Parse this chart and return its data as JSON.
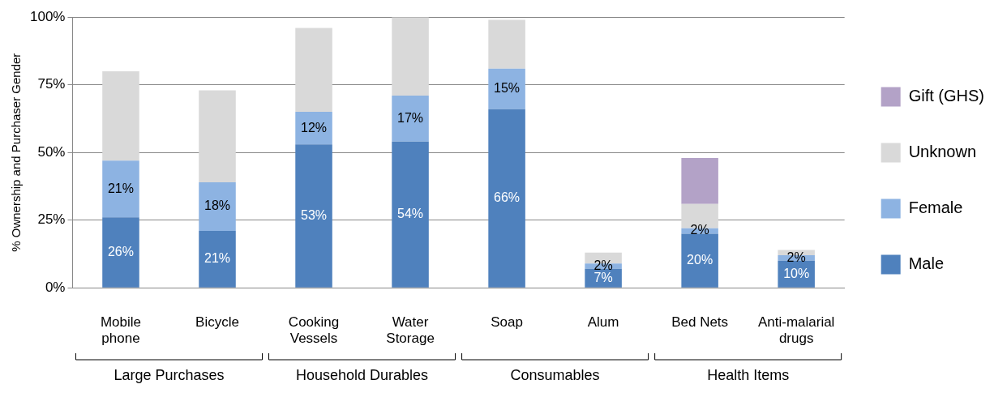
{
  "chart_data": {
    "type": "bar",
    "stacked": true,
    "ylabel": "% Ownership and Purchaser Gender",
    "categories": [
      "Mobile phone",
      "Bicycle",
      "Cooking Vessels",
      "Water Storage",
      "Soap",
      "Alum",
      "Bed Nets",
      "Anti-malarial drugs"
    ],
    "series": [
      {
        "name": "Male",
        "color": "#4f81bd",
        "values": [
          26,
          21,
          53,
          54,
          66,
          7,
          20,
          10
        ],
        "value_labels": [
          "26%",
          "21%",
          "53%",
          "54%",
          "66%",
          "7%",
          "20%",
          "10%"
        ]
      },
      {
        "name": "Female",
        "color": "#8db3e2",
        "values": [
          21,
          18,
          12,
          17,
          15,
          2,
          2,
          2
        ],
        "value_labels": [
          "21%",
          "18%",
          "12%",
          "17%",
          "15%",
          "2%",
          "2%",
          "2%"
        ]
      },
      {
        "name": "Unknown",
        "color": "#d9d9d9",
        "values": [
          33,
          34,
          31,
          29,
          18,
          4,
          9,
          2
        ]
      },
      {
        "name": "Gift (GHS)",
        "color": "#b3a2c7",
        "values": [
          0,
          0,
          0,
          0,
          0,
          0,
          17,
          0
        ]
      }
    ],
    "ylim": [
      0,
      100
    ],
    "yticks": [
      {
        "value": 0,
        "label": "0%"
      },
      {
        "value": 25,
        "label": "25%"
      },
      {
        "value": 50,
        "label": "50%"
      },
      {
        "value": 75,
        "label": "75%"
      },
      {
        "value": 100,
        "label": "100%"
      }
    ],
    "grid": "y",
    "legend": "right",
    "annotations": [
      "Large Purchases",
      "Household Durables",
      "Consumables",
      "Health Items"
    ]
  }
}
